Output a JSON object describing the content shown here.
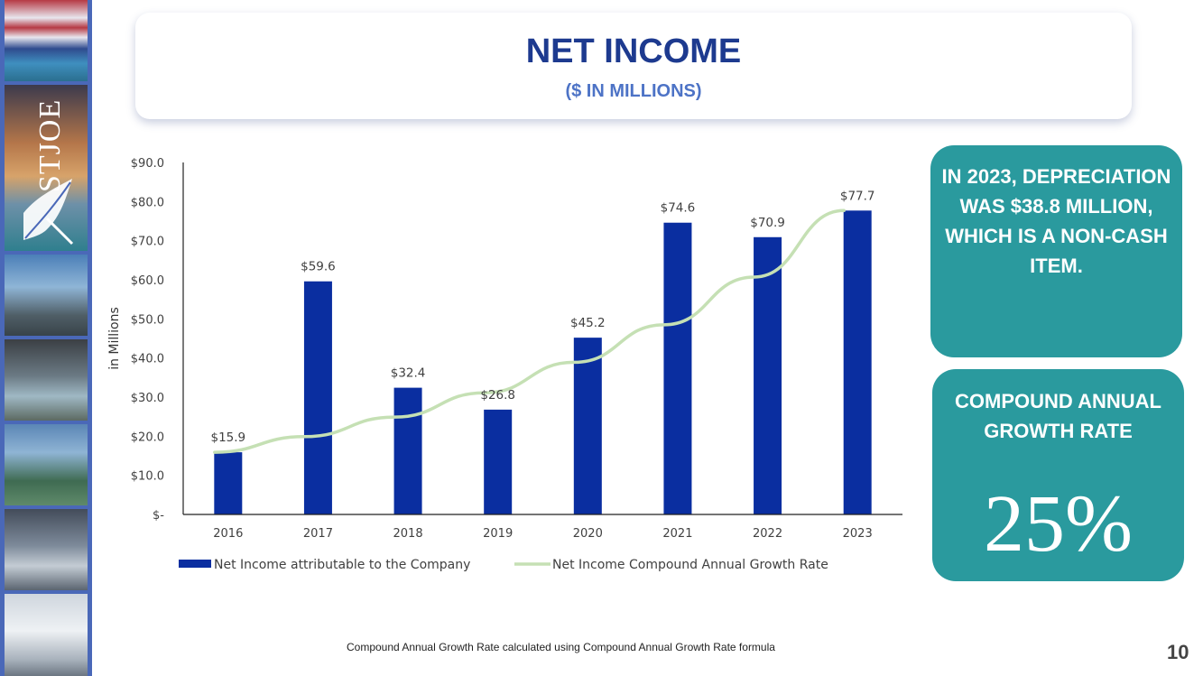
{
  "slide": {
    "title": "NET INCOME",
    "subtitle": "($ IN MILLIONS)",
    "footnote": "Compound Annual Growth Rate calculated using Compound Annual Growth Rate formula",
    "page_number": "10"
  },
  "logo": {
    "text": "STJOE"
  },
  "cards": {
    "depreciation": "IN 2023, DEPRECIATION WAS $38.8 MILLION, WHICH IS A NON-CASH ITEM.",
    "cagr_label": "COMPOUND ANNUAL GROWTH RATE",
    "cagr_value": "25%"
  },
  "colors": {
    "bar": "#0a2ea0",
    "trend": "#c5e0b4",
    "card": "#2a9a9e",
    "title": "#1d3a8f",
    "subtitle": "#4d73c6"
  },
  "chart_data": {
    "type": "bar",
    "title": "",
    "xlabel": "",
    "ylabel": "in Millions",
    "ylim": [
      0,
      90
    ],
    "y_ticks": [
      0,
      10,
      20,
      30,
      40,
      50,
      60,
      70,
      80,
      90
    ],
    "y_tick_labels": [
      "$-",
      "$10.0",
      "$20.0",
      "$30.0",
      "$40.0",
      "$50.0",
      "$60.0",
      "$70.0",
      "$80.0",
      "$90.0"
    ],
    "categories": [
      "2016",
      "2017",
      "2018",
      "2019",
      "2020",
      "2021",
      "2022",
      "2023"
    ],
    "series": [
      {
        "name": "Net Income attributable to the Company",
        "type": "bar",
        "values": [
          15.9,
          59.6,
          32.4,
          26.8,
          45.2,
          74.6,
          70.9,
          77.7
        ],
        "labels": [
          "$15.9",
          "$59.6",
          "$32.4",
          "$26.8",
          "$45.2",
          "$74.6",
          "$70.9",
          "$77.7"
        ]
      },
      {
        "name": "Net Income Compound Annual Growth Rate",
        "type": "line",
        "values": [
          15.9,
          19.9,
          24.9,
          31.1,
          38.9,
          48.5,
          60.7,
          77.7
        ]
      }
    ],
    "legend": "bottom",
    "grid": false
  }
}
